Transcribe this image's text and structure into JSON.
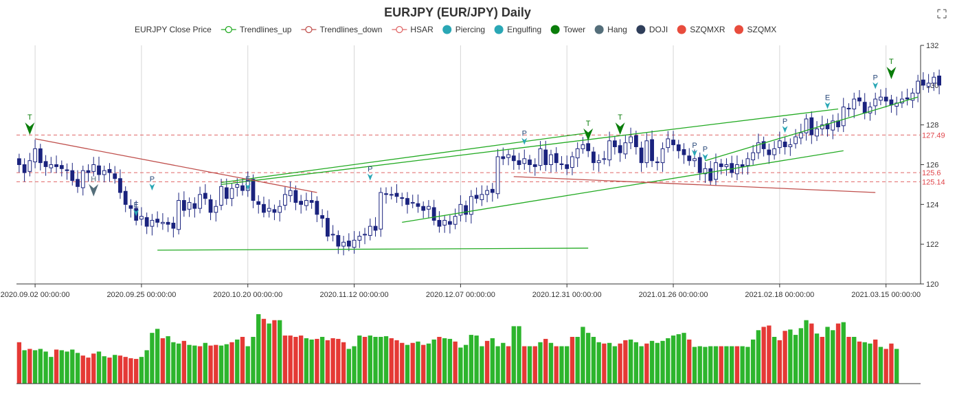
{
  "chart_data": {
    "type": "candlestick",
    "title": "EURJPY (EUR/JPY) Daily",
    "legend": [
      {
        "name": "EURJPY Close Price",
        "kind": "none",
        "color": "#1a237e"
      },
      {
        "name": "Trendlines_up",
        "kind": "line-open",
        "color": "#22aa22"
      },
      {
        "name": "Trendlines_down",
        "kind": "line-open",
        "color": "#c0504d"
      },
      {
        "name": "HSAR",
        "kind": "line-open",
        "color": "#e06666"
      },
      {
        "name": "Piercing",
        "kind": "dot",
        "color": "#2aa7b5"
      },
      {
        "name": "Engulfing",
        "kind": "dot",
        "color": "#2aa7b5"
      },
      {
        "name": "Tower",
        "kind": "dot",
        "color": "#0a7d0a"
      },
      {
        "name": "Hang",
        "kind": "dot",
        "color": "#546e7a"
      },
      {
        "name": "DOJI",
        "kind": "dot",
        "color": "#2f3e5a"
      },
      {
        "name": "SZQMXR",
        "kind": "dot",
        "color": "#e84c3d"
      },
      {
        "name": "SZQMX",
        "kind": "dot",
        "color": "#e84c3d"
      }
    ],
    "y_axis": {
      "min": 120,
      "max": 132,
      "ticks": [
        120,
        122,
        124,
        126,
        128,
        130,
        132
      ],
      "position": "right"
    },
    "x_axis": {
      "bar_count": 170,
      "tick_labels": [
        {
          "index": 3,
          "label": "2020.09.02 00:00:00"
        },
        {
          "index": 23,
          "label": "2020.09.25 00:00:00"
        },
        {
          "index": 43,
          "label": "2020.10.20 00:00:00"
        },
        {
          "index": 63,
          "label": "2020.11.12 00:00:00"
        },
        {
          "index": 83,
          "label": "2020.12.07 00:00:00"
        },
        {
          "index": 103,
          "label": "2020.12.31 00:00:00"
        },
        {
          "index": 123,
          "label": "2021.01.26 00:00:00"
        },
        {
          "index": 143,
          "label": "2021.02.18 00:00:00"
        },
        {
          "index": 163,
          "label": "2021.03.15 00:00:00"
        }
      ]
    },
    "closes": [
      126.0,
      125.6,
      126.2,
      126.8,
      126.1,
      125.9,
      126.0,
      125.9,
      125.8,
      125.7,
      125.2,
      124.9,
      125.7,
      125.6,
      126.0,
      125.5,
      125.7,
      125.6,
      125.3,
      124.6,
      124.0,
      123.8,
      123.2,
      123.4,
      122.9,
      123.2,
      123.1,
      123.1,
      123.0,
      122.8,
      124.2,
      123.7,
      124.1,
      123.8,
      124.5,
      124.3,
      123.6,
      123.9,
      124.9,
      124.3,
      124.8,
      125.0,
      124.7,
      125.2,
      124.2,
      124.0,
      123.6,
      123.8,
      123.6,
      123.9,
      124.5,
      124.7,
      124.1,
      124.0,
      124.2,
      124.1,
      123.5,
      123.3,
      122.4,
      122.5,
      121.9,
      122.1,
      121.9,
      122.2,
      122.4,
      122.5,
      122.9,
      122.7,
      124.6,
      124.5,
      124.5,
      124.4,
      124.3,
      124.0,
      124.1,
      123.9,
      123.7,
      123.9,
      123.2,
      122.9,
      123.2,
      123.0,
      123.4,
      124.0,
      123.5,
      124.4,
      124.3,
      124.5,
      124.7,
      124.6,
      126.4,
      126.3,
      126.5,
      126.2,
      126.0,
      126.3,
      126.0,
      125.9,
      126.8,
      126.0,
      126.5,
      126.1,
      126.0,
      125.8,
      126.4,
      126.8,
      127.0,
      126.7,
      126.1,
      126.2,
      126.3,
      127.2,
      126.9,
      126.6,
      127.1,
      127.4,
      126.9,
      126.1,
      127.2,
      126.2,
      126.1,
      126.8,
      127.3,
      127.0,
      126.7,
      126.5,
      126.2,
      126.3,
      125.6,
      125.8,
      125.2,
      126.1,
      125.9,
      126.0,
      125.6,
      126.0,
      125.9,
      126.3,
      126.6,
      127.1,
      126.8,
      126.5,
      126.8,
      127.2,
      126.9,
      127.0,
      127.4,
      127.6,
      128.3,
      127.5,
      127.8,
      128.0,
      127.8,
      128.2,
      127.9,
      128.9,
      128.8,
      129.3,
      129.2,
      128.6,
      128.9,
      129.3,
      129.4,
      129.2,
      129.0,
      129.1,
      129.3,
      129.3,
      129.6,
      130.2,
      130.0,
      130.1,
      130.4,
      130.0
    ],
    "markers": [
      {
        "index": 2,
        "label": "T",
        "pattern": "Tower",
        "color": "#0a7d0a",
        "value": 127.5,
        "shape": "arrow"
      },
      {
        "index": 14,
        "label": "H",
        "pattern": "Hang",
        "color": "#546e7a",
        "value": 124.4,
        "shape": "arrow"
      },
      {
        "index": 22,
        "label": "E",
        "pattern": "Engulfing",
        "color": "#2aa7b5",
        "value": 123.4,
        "shape": "pin"
      },
      {
        "index": 25,
        "label": "P",
        "pattern": "Piercing",
        "color": "#2aa7b5",
        "value": 124.7,
        "shape": "pin"
      },
      {
        "index": 43,
        "label": "E",
        "pattern": "Engulfing",
        "color": "#2aa7b5",
        "value": 124.7,
        "shape": "pin"
      },
      {
        "index": 66,
        "label": "P",
        "pattern": "Piercing",
        "color": "#2aa7b5",
        "value": 125.2,
        "shape": "pin"
      },
      {
        "index": 95,
        "label": "P",
        "pattern": "Piercing",
        "color": "#2aa7b5",
        "value": 127.0,
        "shape": "pin"
      },
      {
        "index": 107,
        "label": "T",
        "pattern": "Tower",
        "color": "#0a7d0a",
        "value": 127.2,
        "shape": "arrow"
      },
      {
        "index": 113,
        "label": "T",
        "pattern": "Tower",
        "color": "#0a7d0a",
        "value": 127.5,
        "shape": "arrow"
      },
      {
        "index": 127,
        "label": "P",
        "pattern": "Piercing",
        "color": "#2aa7b5",
        "value": 126.4,
        "shape": "pin"
      },
      {
        "index": 129,
        "label": "P",
        "pattern": "Piercing",
        "color": "#2aa7b5",
        "value": 126.2,
        "shape": "pin"
      },
      {
        "index": 144,
        "label": "P",
        "pattern": "Piercing",
        "color": "#2aa7b5",
        "value": 127.6,
        "shape": "pin"
      },
      {
        "index": 152,
        "label": "E",
        "pattern": "Engulfing",
        "color": "#2aa7b5",
        "value": 128.8,
        "shape": "pin"
      },
      {
        "index": 161,
        "label": "P",
        "pattern": "Piercing",
        "color": "#2aa7b5",
        "value": 129.8,
        "shape": "pin"
      },
      {
        "index": 164,
        "label": "T",
        "pattern": "Tower",
        "color": "#0a7d0a",
        "value": 130.3,
        "shape": "arrow"
      }
    ],
    "trendlines_up": [
      {
        "from": [
          26,
          121.7
        ],
        "to": [
          107,
          121.8
        ]
      },
      {
        "from": [
          38,
          125.1
        ],
        "to": [
          107,
          127.6
        ]
      },
      {
        "from": [
          72,
          123.1
        ],
        "to": [
          155,
          126.7
        ]
      },
      {
        "from": [
          38,
          125.0
        ],
        "to": [
          154,
          128.8
        ]
      },
      {
        "from": [
          129,
          126.2
        ],
        "to": [
          169,
          129.4
        ]
      }
    ],
    "trendlines_down": [
      {
        "from": [
          3,
          127.3
        ],
        "to": [
          56,
          124.6
        ]
      },
      {
        "from": [
          93,
          125.4
        ],
        "to": [
          161,
          124.6
        ]
      }
    ],
    "hsar": [
      127.49,
      125.6,
      125.14
    ],
    "volume": [
      {
        "value": 62,
        "up": false
      },
      {
        "value": 50,
        "up": true
      },
      {
        "value": 52,
        "up": false
      },
      {
        "value": 50,
        "up": true
      },
      {
        "value": 52,
        "up": true
      },
      {
        "value": 48,
        "up": true
      },
      {
        "value": 40,
        "up": true
      },
      {
        "value": 51,
        "up": false
      },
      {
        "value": 50,
        "up": true
      },
      {
        "value": 48,
        "up": true
      },
      {
        "value": 51,
        "up": true
      },
      {
        "value": 46,
        "up": true
      },
      {
        "value": 42,
        "up": false
      },
      {
        "value": 39,
        "up": false
      },
      {
        "value": 45,
        "up": false
      },
      {
        "value": 48,
        "up": true
      },
      {
        "value": 41,
        "up": true
      },
      {
        "value": 39,
        "up": false
      },
      {
        "value": 43,
        "up": true
      },
      {
        "value": 42,
        "up": false
      },
      {
        "value": 40,
        "up": false
      },
      {
        "value": 38,
        "up": false
      },
      {
        "value": 37,
        "up": false
      },
      {
        "value": 40,
        "up": true
      },
      {
        "value": 50,
        "up": true
      },
      {
        "value": 76,
        "up": true
      },
      {
        "value": 82,
        "up": true
      },
      {
        "value": 68,
        "up": false
      },
      {
        "value": 71,
        "up": true
      },
      {
        "value": 62,
        "up": true
      },
      {
        "value": 60,
        "up": true
      },
      {
        "value": 64,
        "up": false
      },
      {
        "value": 58,
        "up": true
      },
      {
        "value": 57,
        "up": true
      },
      {
        "value": 56,
        "up": false
      },
      {
        "value": 61,
        "up": true
      },
      {
        "value": 57,
        "up": false
      },
      {
        "value": 58,
        "up": false
      },
      {
        "value": 57,
        "up": true
      },
      {
        "value": 59,
        "up": true
      },
      {
        "value": 62,
        "up": false
      },
      {
        "value": 66,
        "up": true
      },
      {
        "value": 70,
        "up": false
      },
      {
        "value": 56,
        "up": true
      },
      {
        "value": 70,
        "up": true
      },
      {
        "value": 104,
        "up": true
      },
      {
        "value": 97,
        "up": false
      },
      {
        "value": 90,
        "up": true
      },
      {
        "value": 95,
        "up": false
      },
      {
        "value": 95,
        "up": true
      },
      {
        "value": 72,
        "up": false
      },
      {
        "value": 72,
        "up": false
      },
      {
        "value": 70,
        "up": false
      },
      {
        "value": 72,
        "up": false
      },
      {
        "value": 68,
        "up": true
      },
      {
        "value": 66,
        "up": true
      },
      {
        "value": 67,
        "up": false
      },
      {
        "value": 70,
        "up": true
      },
      {
        "value": 65,
        "up": false
      },
      {
        "value": 68,
        "up": false
      },
      {
        "value": 67,
        "up": false
      },
      {
        "value": 62,
        "up": false
      },
      {
        "value": 52,
        "up": true
      },
      {
        "value": 56,
        "up": true
      },
      {
        "value": 72,
        "up": true
      },
      {
        "value": 70,
        "up": false
      },
      {
        "value": 72,
        "up": true
      },
      {
        "value": 70,
        "up": true
      },
      {
        "value": 70,
        "up": true
      },
      {
        "value": 71,
        "up": true
      },
      {
        "value": 68,
        "up": false
      },
      {
        "value": 65,
        "up": false
      },
      {
        "value": 61,
        "up": false
      },
      {
        "value": 58,
        "up": true
      },
      {
        "value": 61,
        "up": false
      },
      {
        "value": 63,
        "up": true
      },
      {
        "value": 58,
        "up": false
      },
      {
        "value": 60,
        "up": true
      },
      {
        "value": 66,
        "up": true
      },
      {
        "value": 70,
        "up": false
      },
      {
        "value": 68,
        "up": true
      },
      {
        "value": 67,
        "up": true
      },
      {
        "value": 63,
        "up": false
      },
      {
        "value": 54,
        "up": true
      },
      {
        "value": 58,
        "up": true
      },
      {
        "value": 73,
        "up": true
      },
      {
        "value": 72,
        "up": true
      },
      {
        "value": 56,
        "up": true
      },
      {
        "value": 64,
        "up": false
      },
      {
        "value": 68,
        "up": true
      },
      {
        "value": 56,
        "up": true
      },
      {
        "value": 61,
        "up": true
      },
      {
        "value": 56,
        "up": false
      },
      {
        "value": 86,
        "up": true
      },
      {
        "value": 86,
        "up": true
      },
      {
        "value": 56,
        "up": false
      },
      {
        "value": 56,
        "up": true
      },
      {
        "value": 56,
        "up": false
      },
      {
        "value": 62,
        "up": true
      },
      {
        "value": 67,
        "up": false
      },
      {
        "value": 61,
        "up": true
      },
      {
        "value": 56,
        "up": false
      },
      {
        "value": 56,
        "up": true
      },
      {
        "value": 56,
        "up": true
      },
      {
        "value": 70,
        "up": false
      },
      {
        "value": 70,
        "up": true
      },
      {
        "value": 85,
        "up": true
      },
      {
        "value": 76,
        "up": true
      },
      {
        "value": 70,
        "up": true
      },
      {
        "value": 62,
        "up": true
      },
      {
        "value": 60,
        "up": false
      },
      {
        "value": 61,
        "up": true
      },
      {
        "value": 56,
        "up": true
      },
      {
        "value": 60,
        "up": false
      },
      {
        "value": 65,
        "up": false
      },
      {
        "value": 66,
        "up": true
      },
      {
        "value": 62,
        "up": true
      },
      {
        "value": 56,
        "up": true
      },
      {
        "value": 60,
        "up": false
      },
      {
        "value": 64,
        "up": true
      },
      {
        "value": 61,
        "up": true
      },
      {
        "value": 64,
        "up": true
      },
      {
        "value": 68,
        "up": true
      },
      {
        "value": 72,
        "up": true
      },
      {
        "value": 74,
        "up": true
      },
      {
        "value": 76,
        "up": true
      },
      {
        "value": 66,
        "up": false
      },
      {
        "value": 55,
        "up": true
      },
      {
        "value": 56,
        "up": true
      },
      {
        "value": 55,
        "up": true
      },
      {
        "value": 56,
        "up": true
      },
      {
        "value": 56,
        "up": true
      },
      {
        "value": 56,
        "up": false
      },
      {
        "value": 56,
        "up": true
      },
      {
        "value": 56,
        "up": true
      },
      {
        "value": 56,
        "up": false
      },
      {
        "value": 56,
        "up": true
      },
      {
        "value": 55,
        "up": true
      },
      {
        "value": 66,
        "up": true
      },
      {
        "value": 80,
        "up": true
      },
      {
        "value": 85,
        "up": false
      },
      {
        "value": 87,
        "up": false
      },
      {
        "value": 70,
        "up": true
      },
      {
        "value": 65,
        "up": false
      },
      {
        "value": 79,
        "up": false
      },
      {
        "value": 81,
        "up": true
      },
      {
        "value": 73,
        "up": true
      },
      {
        "value": 83,
        "up": true
      },
      {
        "value": 95,
        "up": true
      },
      {
        "value": 90,
        "up": false
      },
      {
        "value": 75,
        "up": true
      },
      {
        "value": 70,
        "up": false
      },
      {
        "value": 85,
        "up": true
      },
      {
        "value": 80,
        "up": true
      },
      {
        "value": 90,
        "up": false
      },
      {
        "value": 92,
        "up": true
      },
      {
        "value": 70,
        "up": false
      },
      {
        "value": 70,
        "up": true
      },
      {
        "value": 63,
        "up": false
      },
      {
        "value": 62,
        "up": true
      },
      {
        "value": 60,
        "up": true
      },
      {
        "value": 66,
        "up": false
      },
      {
        "value": 55,
        "up": true
      },
      {
        "value": 52,
        "up": false
      },
      {
        "value": 60,
        "up": false
      },
      {
        "value": 52,
        "up": true
      }
    ],
    "colors": {
      "up_candle": "#ffffff",
      "down_candle": "#1a237e",
      "volume_up": "#2db52d",
      "volume_down": "#e53935",
      "grid": "#cccccc"
    }
  }
}
